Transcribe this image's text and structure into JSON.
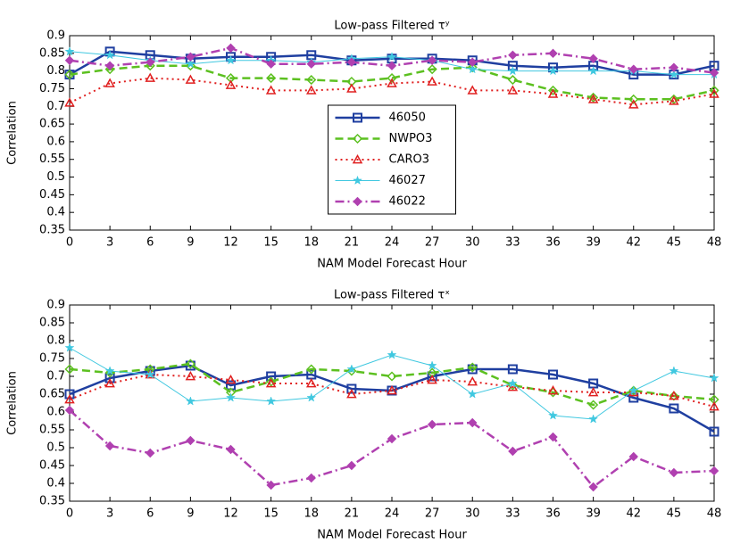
{
  "chart_data": [
    {
      "type": "line",
      "title": "Low-pass Filtered τʸ",
      "x_label": "NAM Model Forecast Hour",
      "y_label": "Correlation",
      "x": [
        0,
        3,
        6,
        9,
        12,
        15,
        18,
        21,
        24,
        27,
        30,
        33,
        36,
        39,
        42,
        45,
        48
      ],
      "xlim": [
        0,
        48
      ],
      "xticks": [
        0,
        3,
        6,
        9,
        12,
        15,
        18,
        21,
        24,
        27,
        30,
        33,
        36,
        39,
        42,
        45,
        48
      ],
      "ylim": [
        0.35,
        0.9
      ],
      "yticks": [
        0.35,
        0.4,
        0.45,
        0.5,
        0.55,
        0.6,
        0.65,
        0.7,
        0.75,
        0.8,
        0.85,
        0.9
      ],
      "legend": "center",
      "series": [
        {
          "name": "46050",
          "color": "#1f3fa0",
          "dash": "solid",
          "marker": "square",
          "values": [
            0.79,
            0.855,
            0.845,
            0.835,
            0.84,
            0.84,
            0.845,
            0.83,
            0.835,
            0.835,
            0.83,
            0.815,
            0.81,
            0.815,
            0.79,
            0.79,
            0.815
          ]
        },
        {
          "name": "NWPO3",
          "color": "#5cc020",
          "dash": "dashed",
          "marker": "diamond",
          "values": [
            0.79,
            0.805,
            0.815,
            0.815,
            0.78,
            0.78,
            0.775,
            0.77,
            0.78,
            0.805,
            0.81,
            0.775,
            0.745,
            0.725,
            0.72,
            0.72,
            0.745
          ]
        },
        {
          "name": "CARO3",
          "color": "#e02020",
          "dash": "dotted",
          "marker": "triangle",
          "values": [
            0.71,
            0.765,
            0.78,
            0.775,
            0.76,
            0.745,
            0.745,
            0.75,
            0.765,
            0.77,
            0.745,
            0.745,
            0.735,
            0.72,
            0.705,
            0.715,
            0.735
          ]
        },
        {
          "name": "46027",
          "color": "#40c8e0",
          "dash": "thin",
          "marker": "star",
          "values": [
            0.855,
            0.845,
            0.83,
            0.82,
            0.83,
            0.83,
            0.825,
            0.835,
            0.84,
            0.83,
            0.805,
            0.8,
            0.8,
            0.8,
            0.8,
            0.79,
            0.79
          ]
        },
        {
          "name": "46022",
          "color": "#b040b0",
          "dash": "dashdot",
          "marker": "filled",
          "values": [
            0.83,
            0.815,
            0.825,
            0.84,
            0.865,
            0.82,
            0.82,
            0.825,
            0.815,
            0.83,
            0.825,
            0.845,
            0.85,
            0.835,
            0.805,
            0.81,
            0.795
          ]
        }
      ]
    },
    {
      "type": "line",
      "title": "Low-pass Filtered τˣ",
      "x_label": "NAM Model Forecast Hour",
      "y_label": "Correlation",
      "x": [
        0,
        3,
        6,
        9,
        12,
        15,
        18,
        21,
        24,
        27,
        30,
        33,
        36,
        39,
        42,
        45,
        48
      ],
      "xlim": [
        0,
        48
      ],
      "xticks": [
        0,
        3,
        6,
        9,
        12,
        15,
        18,
        21,
        24,
        27,
        30,
        33,
        36,
        39,
        42,
        45,
        48
      ],
      "ylim": [
        0.35,
        0.9
      ],
      "yticks": [
        0.35,
        0.4,
        0.45,
        0.5,
        0.55,
        0.6,
        0.65,
        0.7,
        0.75,
        0.8,
        0.85,
        0.9
      ],
      "series": [
        {
          "name": "46050",
          "color": "#1f3fa0",
          "dash": "solid",
          "marker": "square",
          "values": [
            0.65,
            0.695,
            0.715,
            0.73,
            0.675,
            0.7,
            0.705,
            0.665,
            0.66,
            0.7,
            0.72,
            0.72,
            0.705,
            0.68,
            0.64,
            0.61,
            0.545
          ]
        },
        {
          "name": "NWPO3",
          "color": "#5cc020",
          "dash": "dashed",
          "marker": "diamond",
          "values": [
            0.72,
            0.71,
            0.72,
            0.735,
            0.655,
            0.685,
            0.72,
            0.715,
            0.7,
            0.71,
            0.725,
            0.675,
            0.655,
            0.62,
            0.66,
            0.645,
            0.635
          ]
        },
        {
          "name": "CARO3",
          "color": "#e02020",
          "dash": "dotted",
          "marker": "triangle",
          "values": [
            0.635,
            0.68,
            0.705,
            0.7,
            0.69,
            0.68,
            0.68,
            0.65,
            0.66,
            0.69,
            0.685,
            0.67,
            0.66,
            0.655,
            0.655,
            0.645,
            0.615
          ]
        },
        {
          "name": "46027",
          "color": "#40c8e0",
          "dash": "thin",
          "marker": "star",
          "values": [
            0.78,
            0.715,
            0.705,
            0.63,
            0.64,
            0.63,
            0.64,
            0.72,
            0.76,
            0.73,
            0.65,
            0.68,
            0.59,
            0.58,
            0.66,
            0.715,
            0.695
          ]
        },
        {
          "name": "46022",
          "color": "#b040b0",
          "dash": "dashdot",
          "marker": "filled",
          "values": [
            0.605,
            0.505,
            0.485,
            0.52,
            0.495,
            0.395,
            0.415,
            0.45,
            0.525,
            0.565,
            0.57,
            0.49,
            0.53,
            0.39,
            0.475,
            0.43,
            0.435
          ]
        }
      ]
    }
  ]
}
